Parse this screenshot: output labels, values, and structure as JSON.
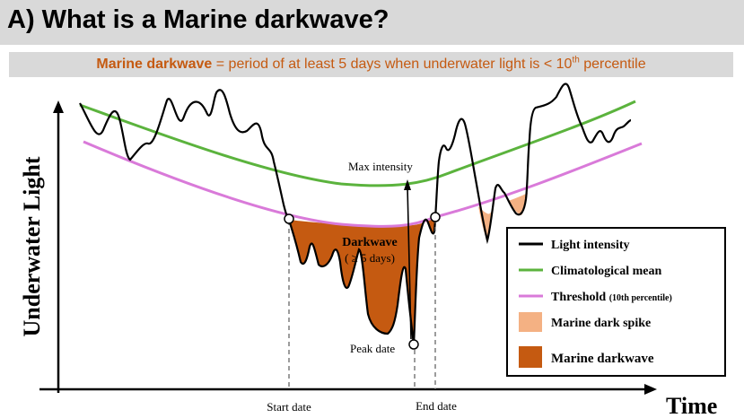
{
  "title": "A) What is a Marine darkwave?",
  "definition": {
    "term": "Marine darkwave",
    "text_before": " = period of at least 5 days when underwater light is < 10",
    "superscript": "th",
    "text_after": " percentile"
  },
  "axes": {
    "y_label": "Underwater Light",
    "x_label": "Time"
  },
  "annotations": {
    "max_intensity": "Max intensity",
    "darkwave_line1": "Darkwave",
    "darkwave_line2": "( ≥ 5 days)",
    "peak_date": "Peak date",
    "start_date": "Start date",
    "end_date": "End date"
  },
  "legend": {
    "items": [
      {
        "label": "Light intensity",
        "suffix": "",
        "color": "#000000",
        "kind": "line"
      },
      {
        "label": "Climatological mean",
        "suffix": "",
        "color": "#5bb33d",
        "kind": "line"
      },
      {
        "label": "Threshold ",
        "suffix": "(10th percentile)",
        "color": "#d97ad9",
        "kind": "line"
      },
      {
        "label": "Marine dark spike",
        "suffix": "",
        "color": "#f4b183",
        "kind": "patch"
      },
      {
        "label": "Marine darkwave",
        "suffix": "",
        "color": "#c55a11",
        "kind": "patch"
      }
    ]
  },
  "colors": {
    "light": "#000000",
    "mean": "#5bb33d",
    "threshold": "#d97ad9",
    "spike": "#f4b183",
    "darkwave": "#c55a11"
  }
}
